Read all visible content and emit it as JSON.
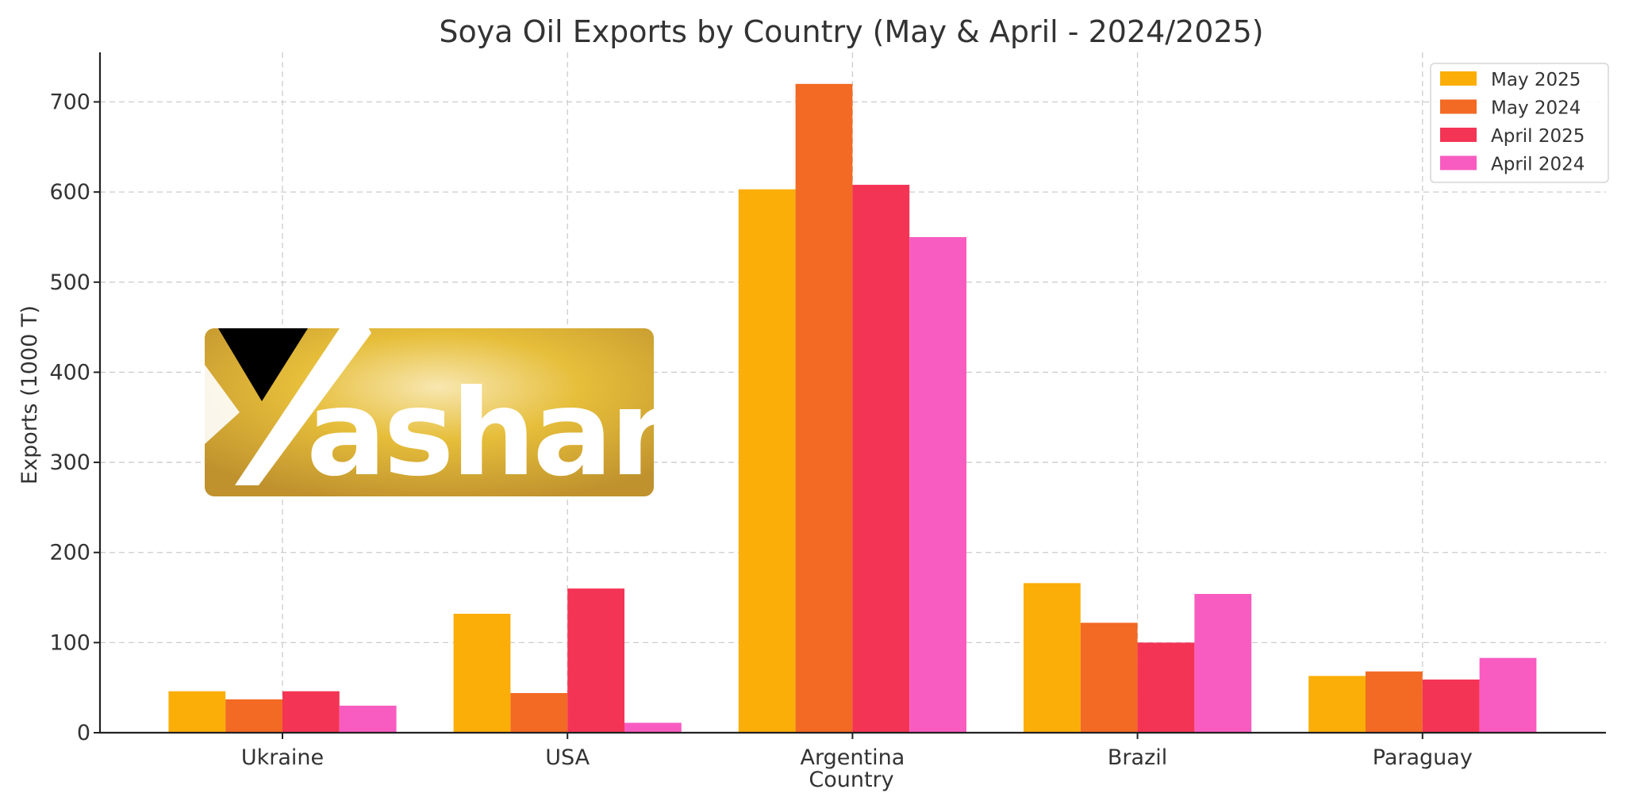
{
  "chart_data": {
    "type": "bar",
    "title": "Soya Oil Exports by Country (May & April - 2024/2025)",
    "xlabel": "Country",
    "ylabel": "Exports (1000 T)",
    "categories": [
      "Ukraine",
      "USA",
      "Argentina",
      "Brazil",
      "Paraguay"
    ],
    "ylim": [
      0,
      755
    ],
    "yticks": [
      0,
      100,
      200,
      300,
      400,
      500,
      600,
      700
    ],
    "grid": true,
    "legend_position": "top-right",
    "series": [
      {
        "name": "May 2025",
        "color": "#FBAE07",
        "values": [
          46,
          132,
          603,
          166,
          63
        ]
      },
      {
        "name": "May 2024",
        "color": "#F26A24",
        "values": [
          37,
          44,
          720,
          122,
          68
        ]
      },
      {
        "name": "April 2025",
        "color": "#F43455",
        "values": [
          46,
          160,
          608,
          100,
          59
        ]
      },
      {
        "name": "April 2024",
        "color": "#F85CC0",
        "values": [
          30,
          11,
          550,
          154,
          83
        ]
      }
    ]
  },
  "watermark": {
    "logo_text": "Yashar",
    "colors": {
      "gold_dark": "#C0922E",
      "gold_light": "#F3D98C",
      "mark": "#000000"
    }
  }
}
